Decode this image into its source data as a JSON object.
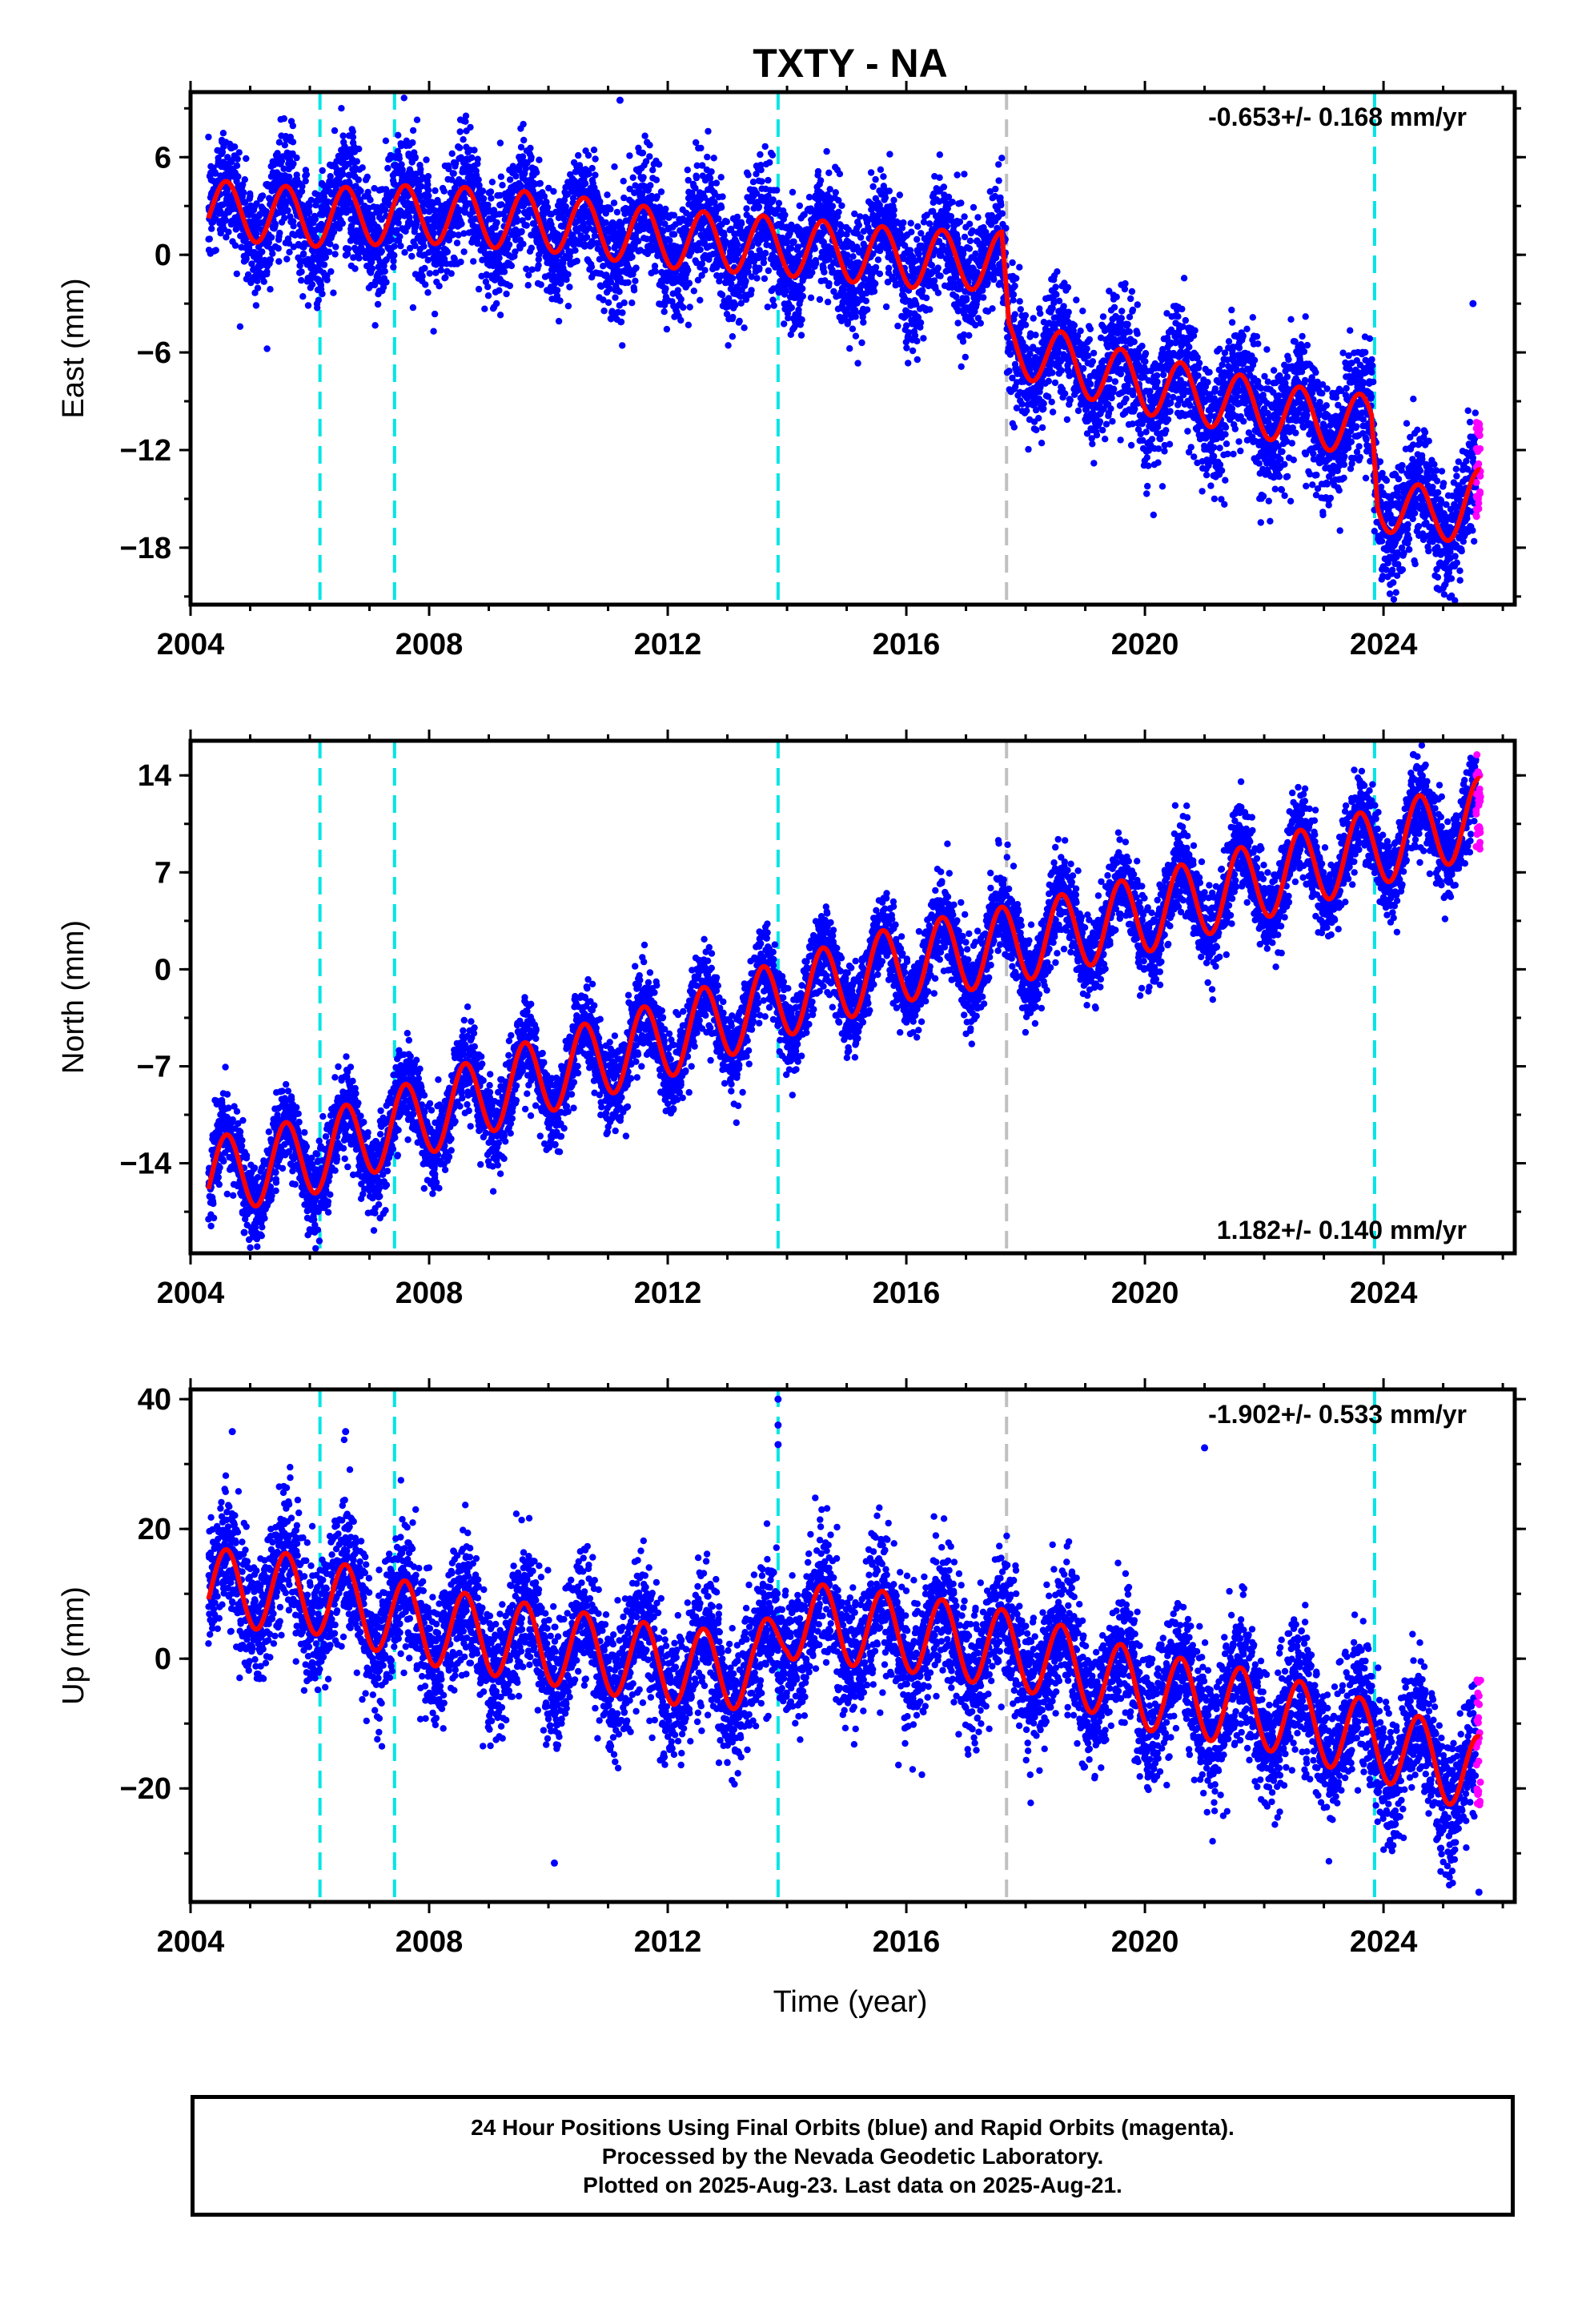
{
  "title": "TXTY - NA",
  "xlabel": "Time (year)",
  "colors": {
    "final": "#0000ff",
    "rapid": "#ff00ff",
    "model": "#ff0000",
    "event_cyan": "#00e5e5",
    "event_gray": "#c0c0c0"
  },
  "caption": {
    "line1": "24 Hour Positions Using Final Orbits (blue) and Rapid Orbits (magenta).",
    "line2": "Processed by the Nevada Geodetic Laboratory.",
    "line3": "Plotted on 2025-Aug-23. Last data on 2025-Aug-21."
  },
  "chart_data": [
    {
      "type": "scatter",
      "component": "East",
      "ylabel": "East (mm)",
      "rate_label": "-0.653+/- 0.168 mm/yr",
      "rate_position": "top-right",
      "xlim": [
        2004,
        2026.2
      ],
      "ylim": [
        -21.5,
        10
      ],
      "xticks": [
        2004,
        2008,
        2012,
        2016,
        2020,
        2024
      ],
      "yticks": [
        6,
        0,
        -6,
        -12,
        -18
      ],
      "events_cyan": [
        2006.17,
        2007.42,
        2013.85,
        2023.85
      ],
      "events_gray": [
        2017.68
      ],
      "model_trend": [
        [
          2004.3,
          2.8
        ],
        [
          2006.0,
          2.3
        ],
        [
          2008.0,
          2.5
        ],
        [
          2010.0,
          2.0
        ],
        [
          2012.0,
          1.0
        ],
        [
          2014.0,
          0.5
        ],
        [
          2016.0,
          -0.2
        ],
        [
          2017.6,
          -0.4
        ],
        [
          2017.72,
          -5.5
        ],
        [
          2019.0,
          -7.0
        ],
        [
          2020.0,
          -8.0
        ],
        [
          2021.0,
          -8.7
        ],
        [
          2022.0,
          -9.5
        ],
        [
          2023.0,
          -10.2
        ],
        [
          2023.8,
          -10.4
        ],
        [
          2023.9,
          -15.0
        ],
        [
          2024.8,
          -16.2
        ],
        [
          2025.6,
          -15.0
        ]
      ],
      "model_amplitude": 1.8,
      "scatter_sd": 1.8,
      "rapid_y_range": [
        -16.5,
        -10.0
      ],
      "outliers": [
        [
          2011.2,
          9.5
        ],
        [
          2025.5,
          -3.0
        ],
        [
          2024.9,
          -20.5
        ]
      ]
    },
    {
      "type": "scatter",
      "component": "North",
      "ylabel": "North (mm)",
      "rate_label": "1.182+/- 0.140 mm/yr",
      "rate_position": "bottom-right",
      "xlim": [
        2004,
        2026.2
      ],
      "ylim": [
        -20.5,
        16.5
      ],
      "xticks": [
        2004,
        2008,
        2012,
        2016,
        2020,
        2024
      ],
      "yticks": [
        14,
        7,
        0,
        -7,
        -14
      ],
      "events_cyan": [
        2006.17,
        2007.42,
        2013.85,
        2023.85
      ],
      "events_gray": [
        2017.68
      ],
      "model_trend": [
        [
          2004.3,
          -15.0
        ],
        [
          2006.0,
          -13.5
        ],
        [
          2008.0,
          -10.5
        ],
        [
          2010.0,
          -7.5
        ],
        [
          2012.0,
          -5.0
        ],
        [
          2014.0,
          -2.0
        ],
        [
          2016.0,
          0.5
        ],
        [
          2018.0,
          2.0
        ],
        [
          2020.0,
          4.0
        ],
        [
          2022.0,
          6.5
        ],
        [
          2024.0,
          9.0
        ],
        [
          2025.6,
          11.0
        ]
      ],
      "model_amplitude": 2.8,
      "scatter_sd": 1.5,
      "rapid_y_range": [
        8.0,
        15.5
      ],
      "outliers": [
        [
          2024.5,
          15.5
        ],
        [
          2004.9,
          -19.0
        ]
      ]
    },
    {
      "type": "scatter",
      "component": "Up",
      "ylabel": "Up (mm)",
      "rate_label": "-1.902+/- 0.533 mm/yr",
      "rate_position": "top-right",
      "xlim": [
        2004,
        2026.2
      ],
      "ylim": [
        -37.5,
        41.5
      ],
      "xticks": [
        2004,
        2008,
        2012,
        2016,
        2020,
        2024
      ],
      "yticks": [
        40,
        20,
        0,
        -20
      ],
      "events_cyan": [
        2006.17,
        2007.42,
        2013.85,
        2023.85
      ],
      "events_gray": [
        2017.68
      ],
      "model_trend": [
        [
          2004.3,
          11.0
        ],
        [
          2006.0,
          10.0
        ],
        [
          2008.0,
          5.0
        ],
        [
          2010.0,
          2.0
        ],
        [
          2012.0,
          -1.0
        ],
        [
          2013.5,
          -2.0
        ],
        [
          2014.0,
          6.0
        ],
        [
          2016.0,
          4.0
        ],
        [
          2018.0,
          1.0
        ],
        [
          2020.0,
          -5.0
        ],
        [
          2022.0,
          -8.0
        ],
        [
          2024.0,
          -13.0
        ],
        [
          2025.6,
          -18.0
        ]
      ],
      "model_amplitude": 6.0,
      "scatter_sd": 5.0,
      "rapid_y_range": [
        -23.0,
        -3.0
      ],
      "outliers": [
        [
          2013.85,
          40.0
        ],
        [
          2013.85,
          36.0
        ],
        [
          2013.85,
          33.0
        ],
        [
          2004.7,
          35.0
        ],
        [
          2006.6,
          35.0
        ],
        [
          2021.0,
          32.5
        ],
        [
          2010.1,
          -31.5
        ],
        [
          2025.6,
          -36.0
        ]
      ]
    }
  ]
}
